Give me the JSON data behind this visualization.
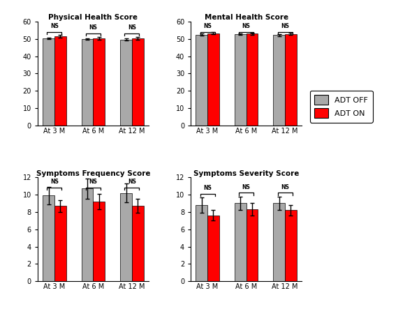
{
  "titles": [
    "Physical Health Score",
    "Mental Health Score",
    "Symptoms Frequency Score",
    "Symptoms Severity Score"
  ],
  "groups": [
    "At 3 M",
    "At 6 M",
    "At 12 M"
  ],
  "colors": {
    "off": "#A9A9A9",
    "on": "#FF0000"
  },
  "phy_off": [
    50.3,
    50.0,
    49.7
  ],
  "phy_on": [
    51.5,
    50.3,
    50.4
  ],
  "phy_off_err": [
    0.5,
    0.5,
    0.5
  ],
  "phy_on_err": [
    0.9,
    0.7,
    0.7
  ],
  "phy_ylim": [
    0,
    60
  ],
  "phy_yticks": [
    0,
    10,
    20,
    30,
    40,
    50,
    60
  ],
  "men_off": [
    52.5,
    52.8,
    52.2
  ],
  "men_on": [
    53.3,
    53.1,
    52.9
  ],
  "men_off_err": [
    0.5,
    0.5,
    0.5
  ],
  "men_on_err": [
    0.6,
    0.6,
    0.7
  ],
  "men_ylim": [
    0,
    60
  ],
  "men_yticks": [
    0,
    10,
    20,
    30,
    40,
    50,
    60
  ],
  "frq_off": [
    9.9,
    10.7,
    10.2
  ],
  "frq_on": [
    8.7,
    9.2,
    8.7
  ],
  "frq_off_err": [
    1.0,
    1.2,
    1.1
  ],
  "frq_on_err": [
    0.7,
    0.9,
    0.8
  ],
  "frq_ylim": [
    0,
    12
  ],
  "frq_yticks": [
    0,
    2,
    4,
    6,
    8,
    10,
    12
  ],
  "sev_off": [
    8.8,
    9.0,
    9.0
  ],
  "sev_on": [
    7.6,
    8.3,
    8.2
  ],
  "sev_off_err": [
    0.9,
    0.8,
    0.8
  ],
  "sev_on_err": [
    0.6,
    0.7,
    0.6
  ],
  "sev_ylim": [
    0,
    12
  ],
  "sev_yticks": [
    0,
    2,
    4,
    6,
    8,
    10,
    12
  ],
  "legend_labels": [
    "ADT OFF",
    "ADT ON"
  ]
}
